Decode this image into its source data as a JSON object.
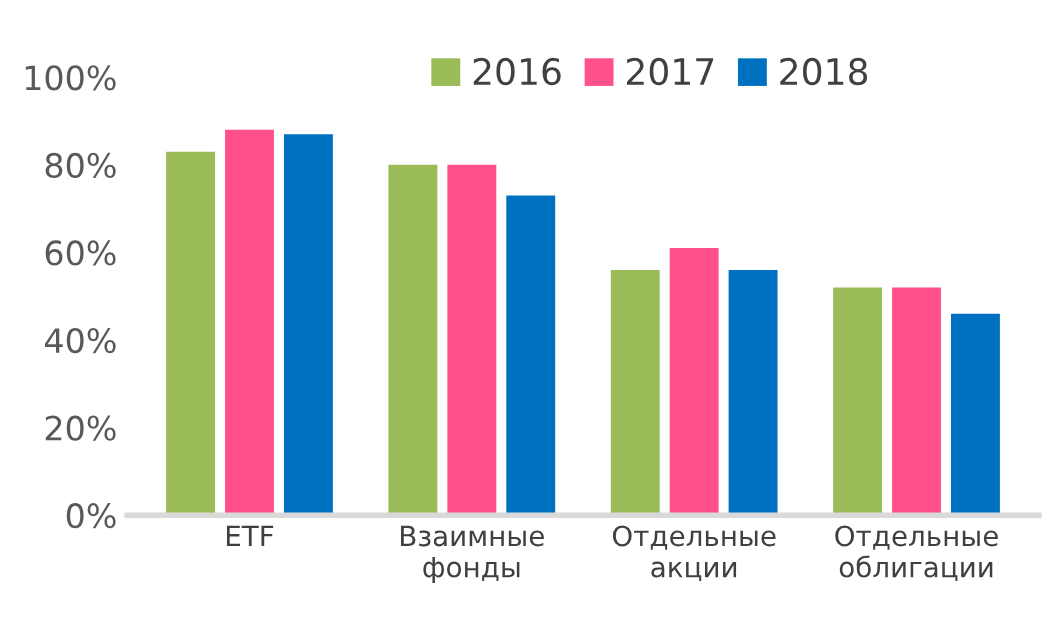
{
  "chart_data": {
    "type": "bar",
    "categories": [
      "ETF",
      "Взаимные\nфонды",
      "Отдельные\nакции",
      "Отдельные\nоблигации"
    ],
    "series": [
      {
        "name": "2016",
        "color": "#9bbb59",
        "values": [
          83,
          80,
          56,
          52
        ]
      },
      {
        "name": "2017",
        "color": "#ff5089",
        "values": [
          88,
          80,
          61,
          52
        ]
      },
      {
        "name": "2018",
        "color": "#0070c0",
        "values": [
          87,
          73,
          56,
          46
        ]
      }
    ],
    "ylim": [
      0,
      100
    ],
    "yticks": [
      {
        "value": 0,
        "label": "0%"
      },
      {
        "value": 20,
        "label": "20%"
      },
      {
        "value": 40,
        "label": "40%"
      },
      {
        "value": 60,
        "label": "60%"
      },
      {
        "value": 80,
        "label": "80%"
      },
      {
        "value": 100,
        "label": "100%"
      }
    ],
    "grid": false,
    "legend": "top right"
  }
}
